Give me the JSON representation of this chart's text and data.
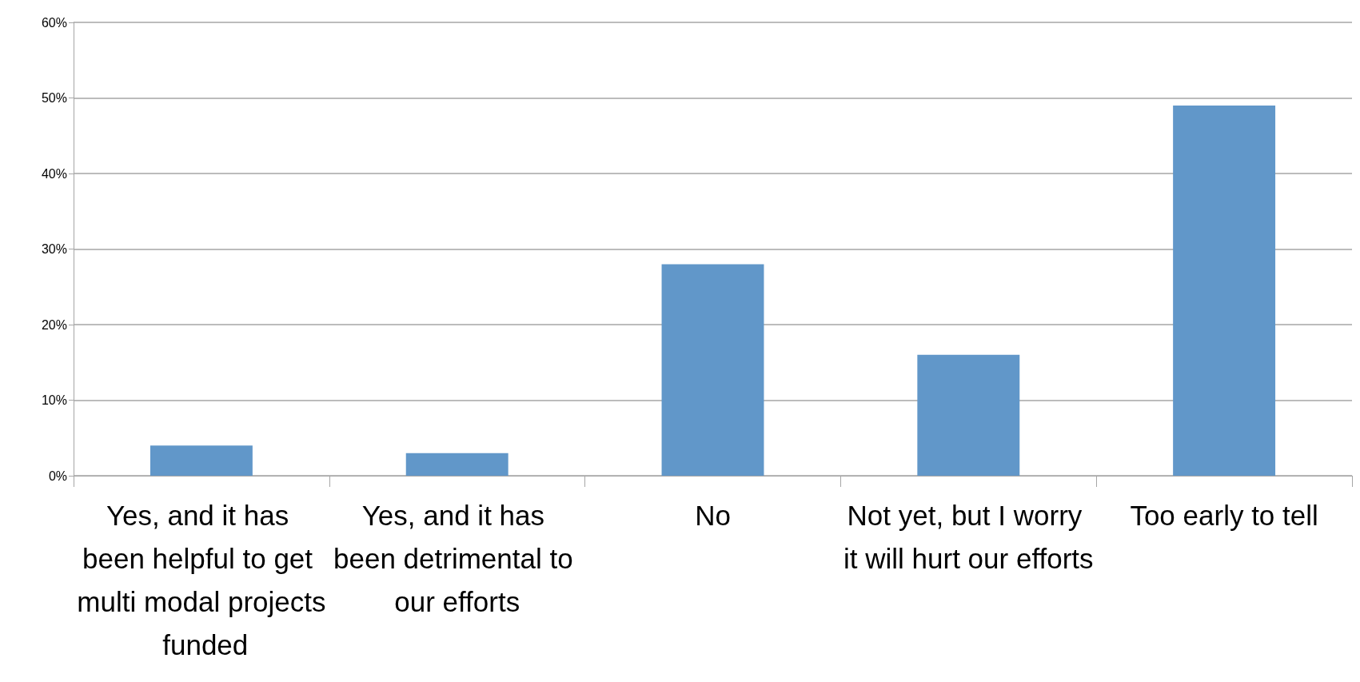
{
  "chart_data": {
    "type": "bar",
    "categories": [
      "Yes, and it has been helpful to get multi modal projects funded",
      "Yes, and it has been detrimental to our efforts",
      "No",
      "Not yet, but I worry it will hurt our efforts",
      "Too early to tell"
    ],
    "values": [
      4,
      3,
      28,
      16,
      49
    ],
    "color": "#6197c9",
    "ylim": [
      0,
      60
    ],
    "yticks": [
      {
        "value": 0,
        "label": "0%"
      },
      {
        "value": 10,
        "label": "10%"
      },
      {
        "value": 20,
        "label": "20%"
      },
      {
        "value": 30,
        "label": "30%"
      },
      {
        "value": 40,
        "label": "40%"
      },
      {
        "value": 50,
        "label": "50%"
      },
      {
        "value": 60,
        "label": "60%"
      }
    ],
    "grid": "y"
  }
}
